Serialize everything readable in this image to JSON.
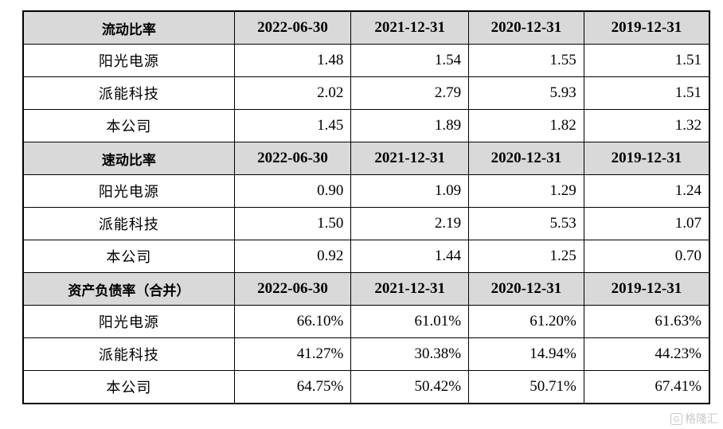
{
  "columns": [
    "2022-06-30",
    "2021-12-31",
    "2020-12-31",
    "2019-12-31"
  ],
  "sections": [
    {
      "title": "流动比率",
      "rows": [
        {
          "name": "阳光电源",
          "values": [
            "1.48",
            "1.54",
            "1.55",
            "1.51"
          ]
        },
        {
          "name": "派能科技",
          "values": [
            "2.02",
            "2.79",
            "5.93",
            "1.51"
          ]
        },
        {
          "name": "本公司",
          "values": [
            "1.45",
            "1.89",
            "1.82",
            "1.32"
          ]
        }
      ]
    },
    {
      "title": "速动比率",
      "rows": [
        {
          "name": "阳光电源",
          "values": [
            "0.90",
            "1.09",
            "1.29",
            "1.24"
          ]
        },
        {
          "name": "派能科技",
          "values": [
            "1.50",
            "2.19",
            "5.53",
            "1.07"
          ]
        },
        {
          "name": "本公司",
          "values": [
            "0.92",
            "1.44",
            "1.25",
            "0.70"
          ]
        }
      ]
    },
    {
      "title": "资产负债率（合并）",
      "rows": [
        {
          "name": "阳光电源",
          "values": [
            "66.10%",
            "61.01%",
            "61.20%",
            "61.63%"
          ]
        },
        {
          "name": "派能科技",
          "values": [
            "41.27%",
            "30.38%",
            "14.94%",
            "44.23%"
          ]
        },
        {
          "name": "本公司",
          "values": [
            "64.75%",
            "50.42%",
            "50.71%",
            "67.41%"
          ]
        }
      ]
    }
  ],
  "watermark": {
    "icon": "G",
    "text": "格隆汇"
  }
}
